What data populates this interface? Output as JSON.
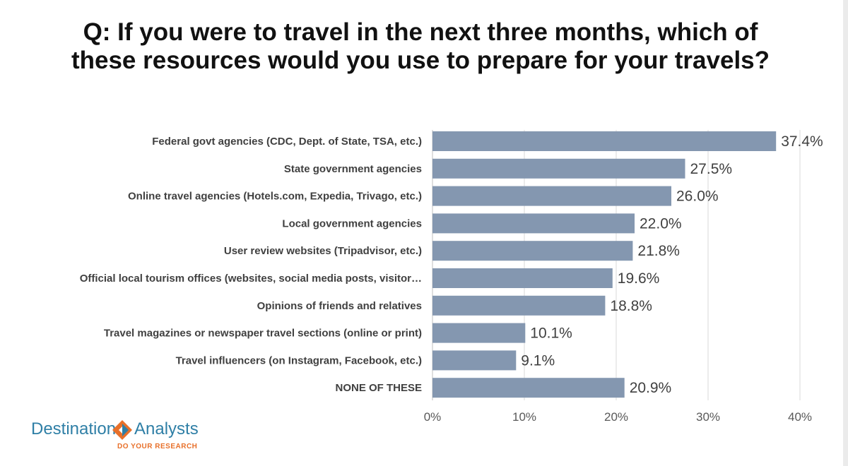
{
  "title_lines": [
    "Q: If you were to travel in the next three months, which of",
    "these resources would you use to prepare for your travels?"
  ],
  "logo": {
    "name_left": "Destination",
    "name_right": "Analysts",
    "tagline": "DO YOUR RESEARCH",
    "colors": {
      "blue": "#2f7fa6",
      "orange": "#e8702a"
    },
    "icon": "diamond-arrows-icon"
  },
  "chart_data": {
    "type": "bar",
    "orientation": "horizontal",
    "categories": [
      "Federal govt agencies (CDC, Dept. of State, TSA, etc.)",
      "State government agencies",
      "Online travel agencies (Hotels.com, Expedia, Trivago, etc.)",
      "Local government agencies",
      "User review websites (Tripadvisor, etc.)",
      "Official local tourism offices (websites, social media posts, visitor…",
      "Opinions of friends and relatives",
      "Travel magazines or newspaper travel sections (online or print)",
      "Travel influencers (on Instagram, Facebook, etc.)",
      "NONE OF THESE"
    ],
    "values": [
      37.4,
      27.5,
      26.0,
      22.0,
      21.8,
      19.6,
      18.8,
      10.1,
      9.1,
      20.9
    ],
    "value_labels": [
      "37.4%",
      "27.5%",
      "26.0%",
      "22.0%",
      "21.8%",
      "19.6%",
      "18.8%",
      "10.1%",
      "9.1%",
      "20.9%"
    ],
    "xlim": [
      0,
      40
    ],
    "x_ticks": [
      0,
      10,
      20,
      30,
      40
    ],
    "x_tick_labels": [
      "0%",
      "10%",
      "20%",
      "30%",
      "40%"
    ],
    "grid": true,
    "legend": "none",
    "bar_color": "#8497b0"
  }
}
